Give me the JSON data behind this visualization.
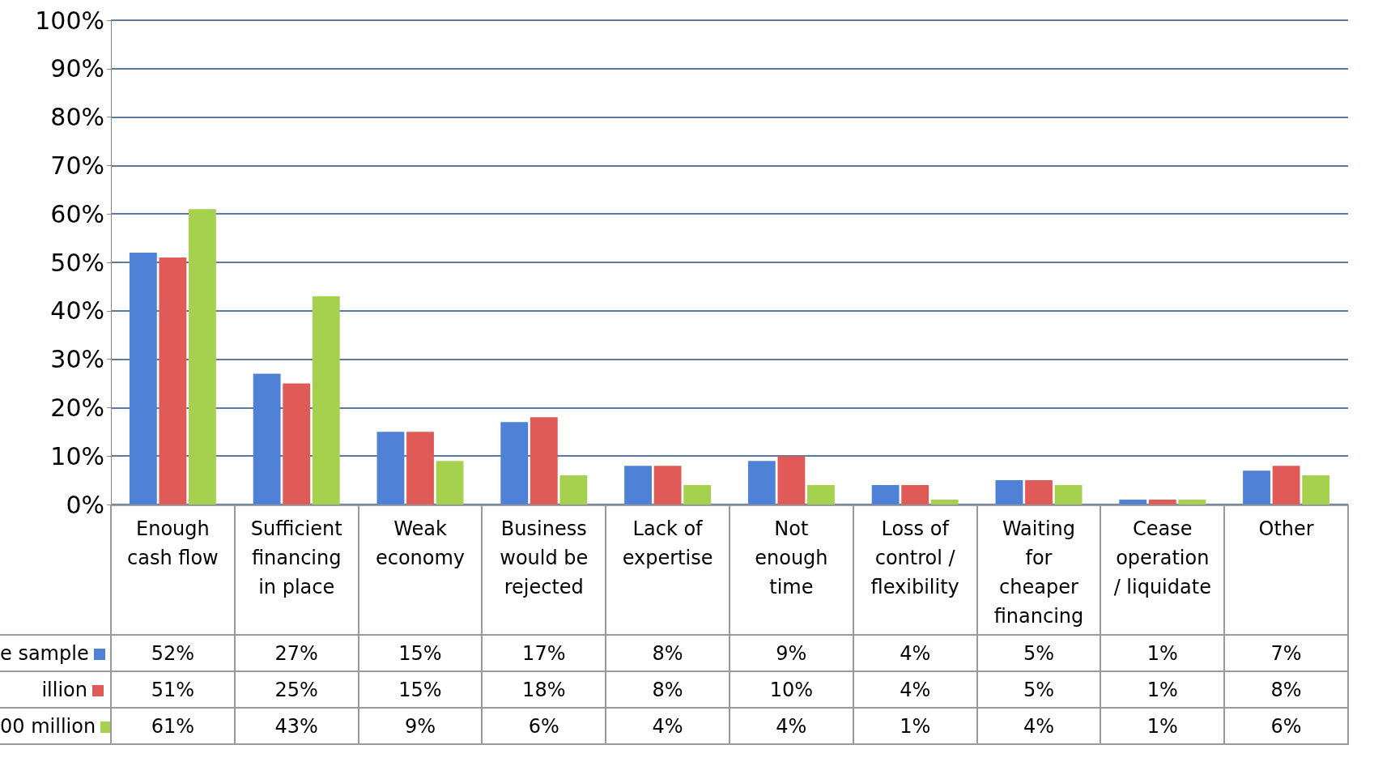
{
  "chart_data": {
    "type": "bar",
    "categories": [
      "Enough cash flow",
      "Sufficient financing in place",
      "Weak economy",
      "Business would be rejected",
      "Lack of expertise",
      "Not enough time",
      "Loss of control / flexibility",
      "Waiting for cheaper financing",
      "Cease operation / liquidate",
      "Other"
    ],
    "series": [
      {
        "name": "e sample",
        "color": "#4f81d6",
        "values": [
          52,
          27,
          15,
          17,
          8,
          9,
          4,
          5,
          1,
          7
        ],
        "value_labels": [
          "52%",
          "27%",
          "15%",
          "17%",
          "8%",
          "9%",
          "4%",
          "5%",
          "1%",
          "7%"
        ]
      },
      {
        "name": "illion",
        "color": "#e05a58",
        "values": [
          51,
          25,
          15,
          18,
          8,
          10,
          4,
          5,
          1,
          8
        ],
        "value_labels": [
          "51%",
          "25%",
          "15%",
          "18%",
          "8%",
          "10%",
          "4%",
          "5%",
          "1%",
          "8%"
        ]
      },
      {
        "name": "00 million",
        "color": "#a6d14f",
        "values": [
          61,
          43,
          9,
          6,
          4,
          4,
          1,
          4,
          1,
          6
        ],
        "value_labels": [
          "61%",
          "43%",
          "9%",
          "6%",
          "4%",
          "4%",
          "1%",
          "4%",
          "1%",
          "6%"
        ]
      }
    ],
    "ylim": [
      0,
      100
    ],
    "yticks": [
      {
        "value": 0,
        "label": "0%"
      },
      {
        "value": 10,
        "label": "10%"
      },
      {
        "value": 20,
        "label": "20%"
      },
      {
        "value": 30,
        "label": "30%"
      },
      {
        "value": 40,
        "label": "40%"
      },
      {
        "value": 50,
        "label": "50%"
      },
      {
        "value": 60,
        "label": "60%"
      },
      {
        "value": 70,
        "label": "70%"
      },
      {
        "value": 80,
        "label": "80%"
      },
      {
        "value": 90,
        "label": "90%"
      },
      {
        "value": 100,
        "label": "100%"
      }
    ],
    "grid": "y",
    "legend": "bottom left"
  }
}
